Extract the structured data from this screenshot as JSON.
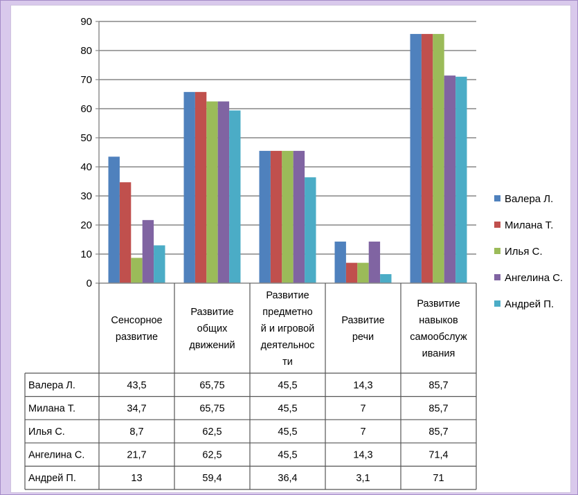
{
  "chart_data": {
    "type": "bar",
    "categories": [
      "Сенсорное развитие",
      "Развитие общих движений",
      "Развитие предметной и игровой деятельности",
      "Развитие речи",
      "Развитие навыков самообслуживания"
    ],
    "category_lines": [
      [
        "Сенсорное",
        "развитие"
      ],
      [
        "Развитие",
        "общих",
        "движений"
      ],
      [
        "Развитие",
        "предметно",
        "й и игровой",
        "деятельнос",
        "ти"
      ],
      [
        "Развитие",
        "речи"
      ],
      [
        "Развитие",
        "навыков",
        "самообслуж",
        "ивания"
      ]
    ],
    "series": [
      {
        "name": "Валера Л.",
        "values": [
          43.5,
          65.75,
          45.5,
          14.3,
          85.7
        ],
        "labels": [
          "43,5",
          "65,75",
          "45,5",
          "14,3",
          "85,7"
        ],
        "color": "#4f81bd"
      },
      {
        "name": "Милана Т.",
        "values": [
          34.7,
          65.75,
          45.5,
          7,
          85.7
        ],
        "labels": [
          "34,7",
          "65,75",
          "45,5",
          "7",
          "85,7"
        ],
        "color": "#c0504d"
      },
      {
        "name": "Илья С.",
        "values": [
          8.7,
          62.5,
          45.5,
          7,
          85.7
        ],
        "labels": [
          "8,7",
          "62,5",
          "45,5",
          "7",
          "85,7"
        ],
        "color": "#9bbb59"
      },
      {
        "name": "Ангелина С.",
        "values": [
          21.7,
          62.5,
          45.5,
          14.3,
          71.4
        ],
        "labels": [
          "21,7",
          "62,5",
          "45,5",
          "14,3",
          "71,4"
        ],
        "color": "#8064a2"
      },
      {
        "name": "Андрей П.",
        "values": [
          13,
          59.4,
          36.4,
          3.1,
          71
        ],
        "labels": [
          "13",
          "59,4",
          "36,4",
          "3,1",
          "71"
        ],
        "color": "#4bacc6"
      }
    ],
    "y_ticks": [
      "0",
      "10",
      "20",
      "30",
      "40",
      "50",
      "60",
      "70",
      "80",
      "90"
    ],
    "ylim": [
      0,
      90
    ],
    "grid": true,
    "legend_position": "right",
    "data_table": true,
    "title": "",
    "xlabel": "",
    "ylabel": ""
  }
}
